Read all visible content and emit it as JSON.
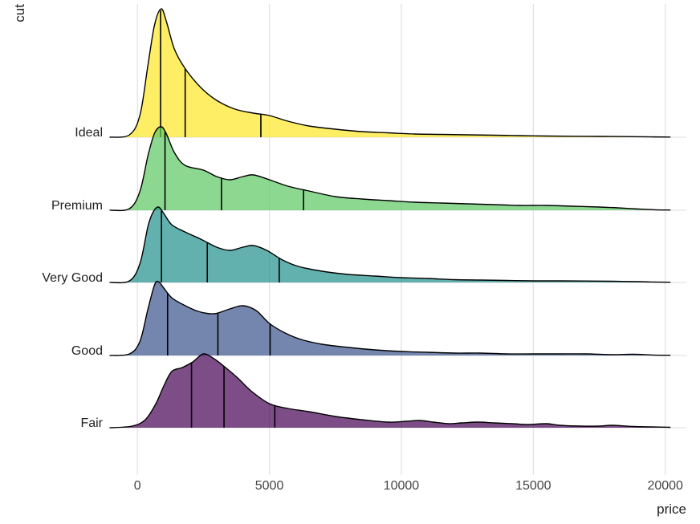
{
  "chart_data": {
    "type": "ridgeline",
    "title": "",
    "xlabel": "price",
    "ylabel": "cut",
    "xlim": [
      -1100,
      20800
    ],
    "x_ticks": [
      0,
      5000,
      10000,
      15000,
      20000
    ],
    "x_tick_labels": [
      "0",
      "5000",
      "10000",
      "15000",
      "20000"
    ],
    "grid": true,
    "legend": "none",
    "series": [
      {
        "label": "Fair",
        "color": "#440154",
        "quantiles": [
          2050,
          3282,
          5206
        ],
        "density": [
          [
            -1050,
            0
          ],
          [
            -200,
            2
          ],
          [
            300,
            10
          ],
          [
            700,
            30
          ],
          [
            1000,
            52
          ],
          [
            1300,
            70
          ],
          [
            1700,
            75
          ],
          [
            2100,
            82
          ],
          [
            2500,
            92
          ],
          [
            2900,
            86
          ],
          [
            3300,
            76
          ],
          [
            3800,
            62
          ],
          [
            4300,
            46
          ],
          [
            5000,
            30
          ],
          [
            5700,
            24
          ],
          [
            6500,
            20
          ],
          [
            7500,
            14
          ],
          [
            8500,
            10
          ],
          [
            9500,
            7
          ],
          [
            10200,
            8
          ],
          [
            10700,
            9
          ],
          [
            11200,
            7
          ],
          [
            11800,
            5
          ],
          [
            12300,
            6
          ],
          [
            12900,
            7
          ],
          [
            13500,
            6
          ],
          [
            14200,
            5
          ],
          [
            14800,
            4
          ],
          [
            15500,
            5
          ],
          [
            16000,
            3
          ],
          [
            16800,
            2
          ],
          [
            17500,
            2
          ],
          [
            18000,
            3
          ],
          [
            18800,
            1.5
          ],
          [
            19500,
            1
          ],
          [
            20200,
            0.5
          ]
        ]
      },
      {
        "label": "Good",
        "color": "#3B528B",
        "quantiles": [
          1145,
          3050,
          5028
        ],
        "density": [
          [
            -1050,
            0
          ],
          [
            -300,
            2
          ],
          [
            100,
            18
          ],
          [
            400,
            58
          ],
          [
            650,
            88
          ],
          [
            800,
            92
          ],
          [
            1000,
            84
          ],
          [
            1300,
            72
          ],
          [
            1700,
            64
          ],
          [
            2300,
            55
          ],
          [
            2900,
            52
          ],
          [
            3500,
            58
          ],
          [
            4000,
            62
          ],
          [
            4500,
            56
          ],
          [
            5000,
            40
          ],
          [
            5600,
            28
          ],
          [
            6200,
            20
          ],
          [
            7000,
            14
          ],
          [
            8000,
            10
          ],
          [
            9000,
            7
          ],
          [
            10000,
            5
          ],
          [
            11000,
            4
          ],
          [
            12000,
            3
          ],
          [
            13000,
            3
          ],
          [
            14000,
            2
          ],
          [
            15000,
            2
          ],
          [
            16000,
            2
          ],
          [
            17000,
            2
          ],
          [
            18000,
            1
          ],
          [
            18800,
            1.5
          ],
          [
            19500,
            0.6
          ],
          [
            20200,
            0.3
          ]
        ]
      },
      {
        "label": "Very Good",
        "color": "#21908C",
        "quantiles": [
          912,
          2648,
          5373
        ],
        "density": [
          [
            -1050,
            0
          ],
          [
            -300,
            2
          ],
          [
            100,
            24
          ],
          [
            400,
            70
          ],
          [
            600,
            88
          ],
          [
            800,
            94
          ],
          [
            1000,
            86
          ],
          [
            1300,
            72
          ],
          [
            1800,
            63
          ],
          [
            2400,
            54
          ],
          [
            3000,
            44
          ],
          [
            3500,
            40
          ],
          [
            4000,
            44
          ],
          [
            4400,
            46
          ],
          [
            4900,
            40
          ],
          [
            5500,
            28
          ],
          [
            6100,
            20
          ],
          [
            7000,
            14
          ],
          [
            8000,
            10
          ],
          [
            9000,
            8
          ],
          [
            10000,
            6
          ],
          [
            11000,
            5
          ],
          [
            12000,
            3.5
          ],
          [
            13000,
            3
          ],
          [
            14000,
            2.5
          ],
          [
            15000,
            2
          ],
          [
            16000,
            2
          ],
          [
            17000,
            1.8
          ],
          [
            18000,
            1.5
          ],
          [
            19000,
            1
          ],
          [
            19500,
            0.6
          ],
          [
            20200,
            0.3
          ]
        ]
      },
      {
        "label": "Premium",
        "color": "#5DC863",
        "quantiles": [
          1046,
          3185,
          6296
        ],
        "density": [
          [
            -1050,
            0
          ],
          [
            -300,
            2
          ],
          [
            100,
            24
          ],
          [
            400,
            68
          ],
          [
            650,
            96
          ],
          [
            900,
            104
          ],
          [
            1100,
            95
          ],
          [
            1400,
            72
          ],
          [
            1800,
            56
          ],
          [
            2500,
            50
          ],
          [
            3000,
            42
          ],
          [
            3500,
            38
          ],
          [
            4000,
            42
          ],
          [
            4400,
            44
          ],
          [
            5000,
            38
          ],
          [
            5700,
            30
          ],
          [
            6500,
            24
          ],
          [
            7500,
            17
          ],
          [
            8500,
            14
          ],
          [
            9500,
            12
          ],
          [
            10500,
            10
          ],
          [
            11500,
            9
          ],
          [
            12500,
            8
          ],
          [
            13500,
            7
          ],
          [
            14500,
            6
          ],
          [
            15500,
            6
          ],
          [
            16500,
            5
          ],
          [
            17500,
            4
          ],
          [
            18200,
            3
          ],
          [
            19000,
            1.5
          ],
          [
            19600,
            0.6
          ],
          [
            20200,
            0.3
          ]
        ]
      },
      {
        "label": "Ideal",
        "color": "#FDE725",
        "quantiles": [
          878,
          1810,
          4678
        ],
        "density": [
          [
            -1050,
            0
          ],
          [
            -300,
            3
          ],
          [
            100,
            28
          ],
          [
            400,
            90
          ],
          [
            650,
            140
          ],
          [
            900,
            160
          ],
          [
            1100,
            144
          ],
          [
            1400,
            110
          ],
          [
            1800,
            86
          ],
          [
            2400,
            62
          ],
          [
            3000,
            46
          ],
          [
            3700,
            35
          ],
          [
            4400,
            30
          ],
          [
            5000,
            27
          ],
          [
            5700,
            20
          ],
          [
            6500,
            14
          ],
          [
            7500,
            10
          ],
          [
            8500,
            7
          ],
          [
            9500,
            5.5
          ],
          [
            10500,
            4
          ],
          [
            11500,
            3.5
          ],
          [
            12500,
            3
          ],
          [
            13500,
            2.5
          ],
          [
            14500,
            2
          ],
          [
            15500,
            1.5
          ],
          [
            16500,
            1.2
          ],
          [
            17500,
            1
          ],
          [
            18500,
            0.8
          ],
          [
            19500,
            0.4
          ],
          [
            20200,
            0.2
          ]
        ]
      }
    ]
  }
}
